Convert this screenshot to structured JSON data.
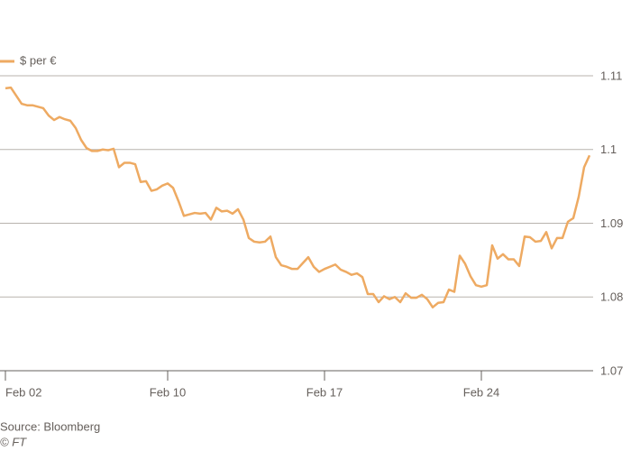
{
  "chart_data": {
    "type": "line",
    "series": [
      {
        "name": "$ per €",
        "color": "#eeaa62",
        "values": [
          1.1083,
          1.1084,
          1.1073,
          1.1062,
          1.106,
          1.106,
          1.1058,
          1.1056,
          1.1046,
          1.104,
          1.1044,
          1.1041,
          1.1039,
          1.1029,
          1.1013,
          1.1002,
          1.0998,
          1.0998,
          1.1,
          1.0999,
          1.1001,
          1.0976,
          1.0982,
          1.0982,
          1.098,
          1.0956,
          1.0957,
          1.0944,
          1.0946,
          1.0951,
          1.0954,
          1.0948,
          1.093,
          1.091,
          1.0912,
          1.0914,
          1.0913,
          1.0914,
          1.0905,
          1.0921,
          1.0916,
          1.0917,
          1.0913,
          1.0919,
          1.0905,
          1.088,
          1.0875,
          1.0874,
          1.0875,
          1.0882,
          1.0854,
          1.0843,
          1.0841,
          1.0838,
          1.0838,
          1.0846,
          1.0854,
          1.0841,
          1.0834,
          1.0838,
          1.0841,
          1.0844,
          1.0837,
          1.0834,
          1.083,
          1.0832,
          1.0827,
          1.0804,
          1.0804,
          1.0793,
          1.0801,
          1.0797,
          1.08,
          1.0793,
          1.0805,
          1.0799,
          1.0799,
          1.0803,
          1.0797,
          1.0786,
          1.0792,
          1.0793,
          1.081,
          1.0807,
          1.0856,
          1.0845,
          1.0828,
          1.0816,
          1.0814,
          1.0816,
          1.087,
          1.0852,
          1.0858,
          1.0851,
          1.0851,
          1.0842,
          1.0882,
          1.0881,
          1.0875,
          1.0876,
          1.0888,
          1.0866,
          1.088,
          1.088,
          1.0902,
          1.0907,
          1.0936,
          1.0976,
          1.0992
        ]
      }
    ],
    "categories": [
      "Feb 02",
      null,
      null,
      null,
      null,
      null,
      null,
      null,
      null,
      null,
      null,
      null,
      null,
      null,
      null,
      null,
      null,
      null,
      null,
      null,
      null,
      null,
      null,
      null,
      null,
      null,
      null,
      null,
      null,
      null,
      "Feb 10",
      null,
      null,
      null,
      null,
      null,
      null,
      null,
      null,
      null,
      null,
      null,
      null,
      null,
      null,
      null,
      null,
      null,
      null,
      null,
      null,
      null,
      null,
      null,
      null,
      null,
      null,
      null,
      null,
      "Feb 17",
      null,
      null,
      null,
      null,
      null,
      null,
      null,
      null,
      null,
      null,
      null,
      null,
      null,
      null,
      null,
      null,
      null,
      null,
      null,
      null,
      null,
      null,
      null,
      null,
      null,
      null,
      null,
      null,
      "Feb 24",
      null,
      null,
      null,
      null,
      null,
      null,
      null,
      null,
      null,
      null,
      null,
      null,
      null,
      null,
      null,
      null,
      null,
      null,
      null,
      null
    ],
    "ylim": [
      1.07,
      1.11
    ],
    "yticks": [
      1.07,
      1.08,
      1.09,
      1.1,
      1.11
    ],
    "grid": true,
    "source": "Source: Bloomberg",
    "credit": "© FT"
  }
}
